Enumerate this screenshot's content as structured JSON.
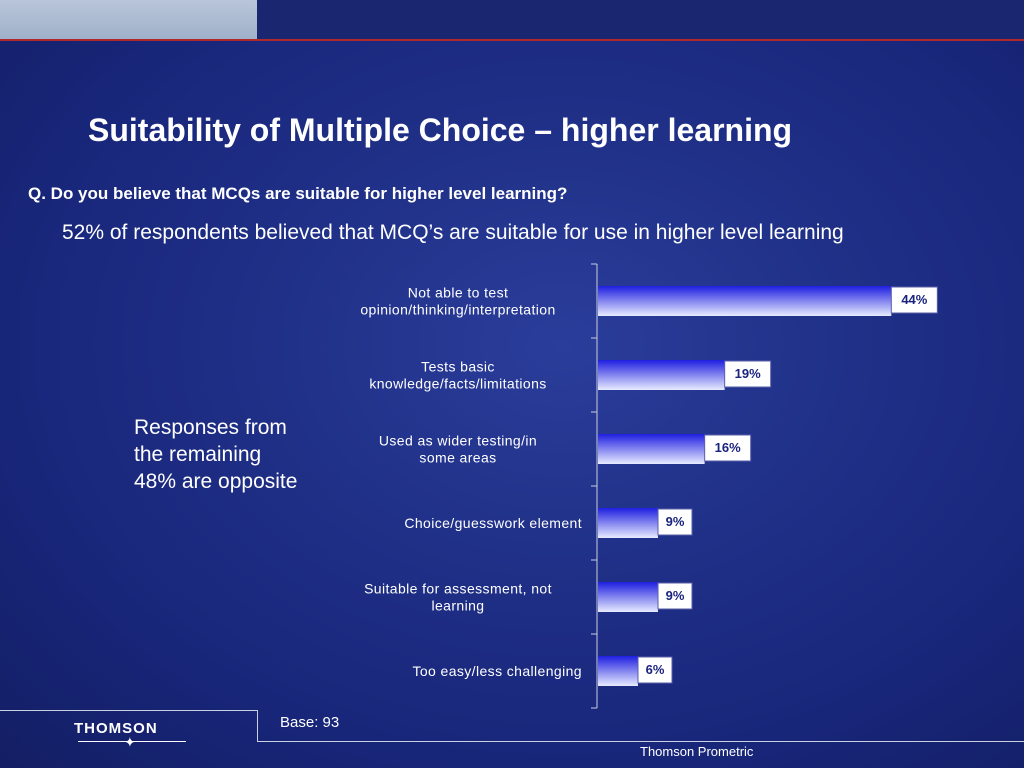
{
  "slide": {
    "title": "Suitability of Multiple Choice – higher learning",
    "question": "Q. Do you believe that MCQs are suitable for higher level learning?",
    "summary": "52% of respondents believed that MCQ’s are suitable for use in higher level learning",
    "note": "Responses from the remaining 48% are opposite"
  },
  "footer": {
    "logo": "THOMSON",
    "base": "Base: 93",
    "brand": "Thomson Prometric"
  },
  "colors": {
    "bar_dark": "#1f1fe0",
    "bar_light": "#e8ebff",
    "value_box": "#ffffff",
    "value_text": "#1a237e"
  },
  "chart_data": {
    "type": "bar",
    "orientation": "horizontal",
    "categories": [
      [
        "Not able to test",
        "opinion/thinking/interpretation"
      ],
      [
        "Tests basic",
        "knowledge/facts/limitations"
      ],
      [
        "Used as wider testing/in",
        "some areas"
      ],
      [
        "Choice/guesswork element"
      ],
      [
        "Suitable for assessment, not",
        "learning"
      ],
      [
        "Too easy/less challenging"
      ]
    ],
    "values": [
      44,
      19,
      16,
      9,
      9,
      6
    ],
    "value_labels": [
      "44%",
      "19%",
      "16%",
      "9%",
      "9%",
      "6%"
    ],
    "xlim": [
      0,
      60
    ],
    "grid": false
  }
}
